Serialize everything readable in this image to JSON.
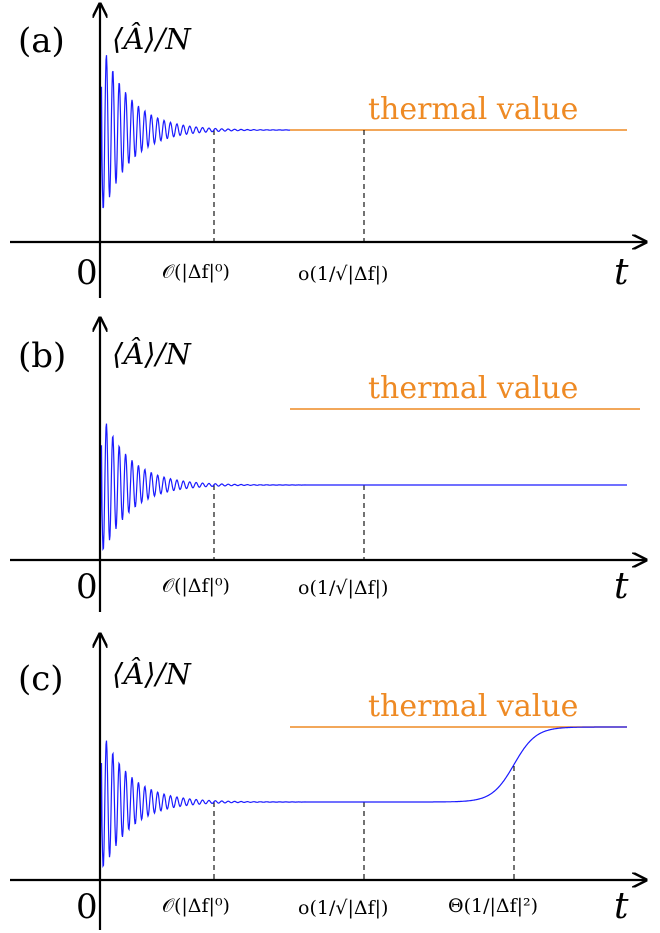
{
  "panels": [
    {
      "id": "a",
      "label": "(a)",
      "ylabel": "⟨Â⟩/N",
      "xlabel": "t",
      "origin": "0",
      "thermal_label": "thermal value",
      "times": [
        "𝒪(|Δf|⁰)",
        "o(1/√|Δf|)"
      ],
      "behavior": "relaxes directly to thermal value"
    },
    {
      "id": "b",
      "label": "(b)",
      "ylabel": "⟨Â⟩/N",
      "xlabel": "t",
      "origin": "0",
      "thermal_label": "thermal value",
      "times": [
        "𝒪(|Δf|⁰)",
        "o(1/√|Δf|)"
      ],
      "behavior": "relaxes to plateau below thermal value"
    },
    {
      "id": "c",
      "label": "(c)",
      "ylabel": "⟨Â⟩/N",
      "xlabel": "t",
      "origin": "0",
      "thermal_label": "thermal value",
      "times": [
        "𝒪(|Δf|⁰)",
        "o(1/√|Δf|)",
        "Θ(1/|Δf|²)"
      ],
      "behavior": "plateau then rises to thermal value"
    }
  ]
}
